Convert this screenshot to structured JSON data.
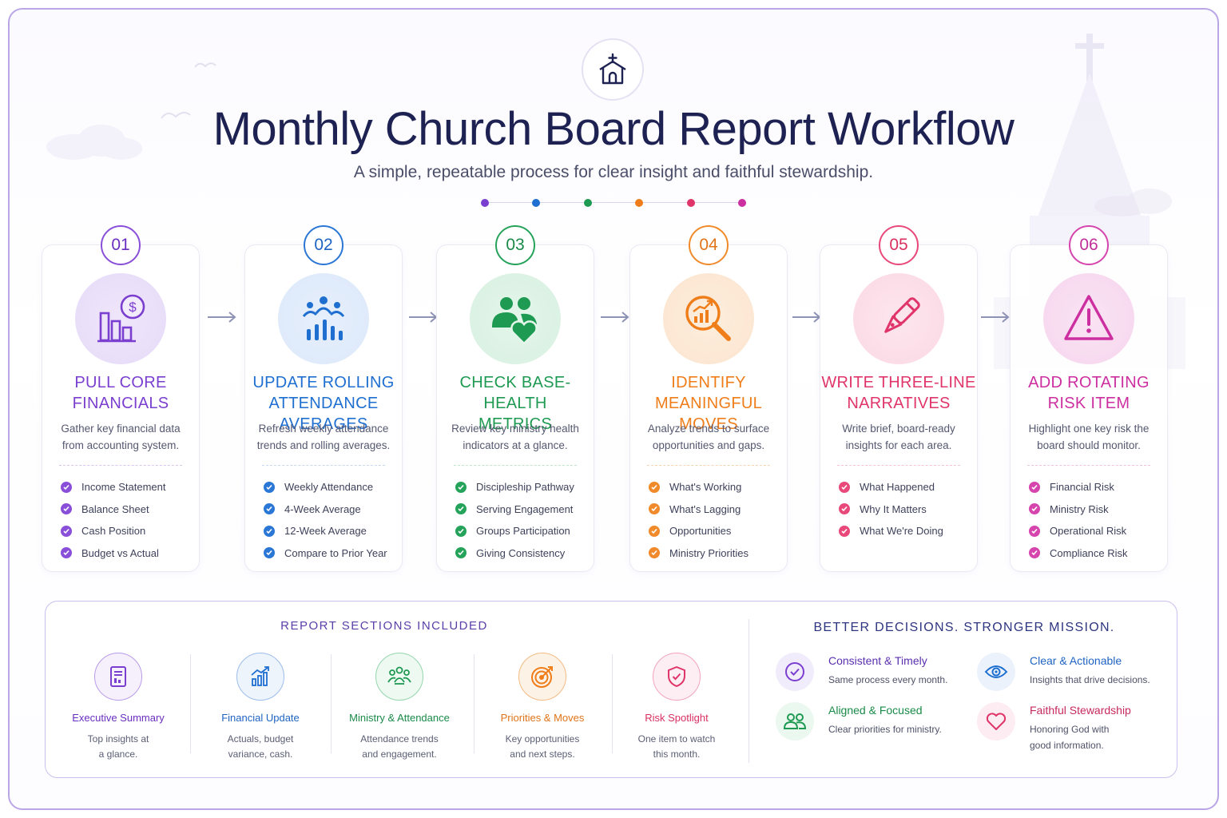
{
  "header": {
    "icon": "church-icon",
    "title": "Monthly Church Board Report Workflow",
    "subtitle": "A simple, repeatable process for clear insight and faithful stewardship."
  },
  "colors": {
    "purple": "#7b3fd0",
    "blue": "#1f6fd1",
    "green": "#1e9a52",
    "orange": "#ef7d1a",
    "pink": "#e0356a",
    "magenta": "#cc2fa0",
    "navy": "#1e2253"
  },
  "steps": [
    {
      "number": "01",
      "title_line1": "PULL CORE",
      "title_line2": "FINANCIALS",
      "desc_line1": "Gather key financial data",
      "desc_line2": "from accounting system.",
      "icon": "financial-chart-dollar-icon",
      "items": [
        "Income Statement",
        "Balance Sheet",
        "Cash Position",
        "Budget vs Actual"
      ]
    },
    {
      "number": "02",
      "title_line1": "UPDATE ROLLING",
      "title_line2": "ATTENDANCE AVERAGES",
      "desc_line1": "Refresh weekly attendance",
      "desc_line2": "trends and rolling averages.",
      "icon": "people-bar-chart-icon",
      "items": [
        "Weekly Attendance",
        "4-Week Average",
        "12-Week Average",
        "Compare to Prior Year"
      ]
    },
    {
      "number": "03",
      "title_line1": "CHECK BASE-HEALTH",
      "title_line2": "METRICS",
      "desc_line1": "Review key ministry health",
      "desc_line2": "indicators at a glance.",
      "icon": "people-heart-icon",
      "items": [
        "Discipleship Pathway",
        "Serving Engagement",
        "Groups Participation",
        "Giving Consistency"
      ]
    },
    {
      "number": "04",
      "title_line1": "IDENTIFY",
      "title_line2": "MEANINGFUL MOVES",
      "desc_line1": "Analyze trends to surface",
      "desc_line2": "opportunities and gaps.",
      "icon": "magnifier-trend-icon",
      "items": [
        "What's Working",
        "What's Lagging",
        "Opportunities",
        "Ministry Priorities"
      ]
    },
    {
      "number": "05",
      "title_line1": "WRITE THREE-LINE",
      "title_line2": "NARRATIVES",
      "desc_line1": "Write brief, board-ready",
      "desc_line2": "insights for each area.",
      "icon": "fountain-pen-icon",
      "items": [
        "What Happened",
        "Why It Matters",
        "What We're Doing"
      ]
    },
    {
      "number": "06",
      "title_line1": "ADD ROTATING",
      "title_line2": "RISK ITEM",
      "desc_line1": "Highlight one key risk the",
      "desc_line2": "board should monitor.",
      "icon": "warning-triangle-icon",
      "items": [
        "Financial Risk",
        "Ministry Risk",
        "Operational Risk",
        "Compliance Risk"
      ]
    }
  ],
  "report_sections": {
    "title": "REPORT SECTIONS INCLUDED",
    "items": [
      {
        "label": "Executive Summary",
        "desc_line1": "Top insights at",
        "desc_line2": "a glance.",
        "icon": "document-icon"
      },
      {
        "label": "Financial Update",
        "desc_line1": "Actuals, budget",
        "desc_line2": "variance, cash.",
        "icon": "trend-chart-icon"
      },
      {
        "label": "Ministry & Attendance",
        "desc_line1": "Attendance trends",
        "desc_line2": "and engagement.",
        "icon": "people-group-icon"
      },
      {
        "label": "Priorities & Moves",
        "desc_line1": "Key opportunities",
        "desc_line2": "and next steps.",
        "icon": "target-icon"
      },
      {
        "label": "Risk Spotlight",
        "desc_line1": "One item to watch",
        "desc_line2": "this month.",
        "icon": "shield-check-icon"
      }
    ]
  },
  "benefits": {
    "title": "BETTER DECISIONS. STRONGER MISSION.",
    "items": [
      {
        "title": "Consistent & Timely",
        "desc_line1": "Same process every month.",
        "desc_line2": "",
        "icon": "check-circle-icon"
      },
      {
        "title": "Clear & Actionable",
        "desc_line1": "Insights that drive decisions.",
        "desc_line2": "",
        "icon": "eye-icon"
      },
      {
        "title": "Aligned & Focused",
        "desc_line1": "Clear priorities for ministry.",
        "desc_line2": "",
        "icon": "people-icon"
      },
      {
        "title": "Faithful Stewardship",
        "desc_line1": "Honoring God with",
        "desc_line2": "good information.",
        "icon": "heart-icon"
      }
    ]
  }
}
